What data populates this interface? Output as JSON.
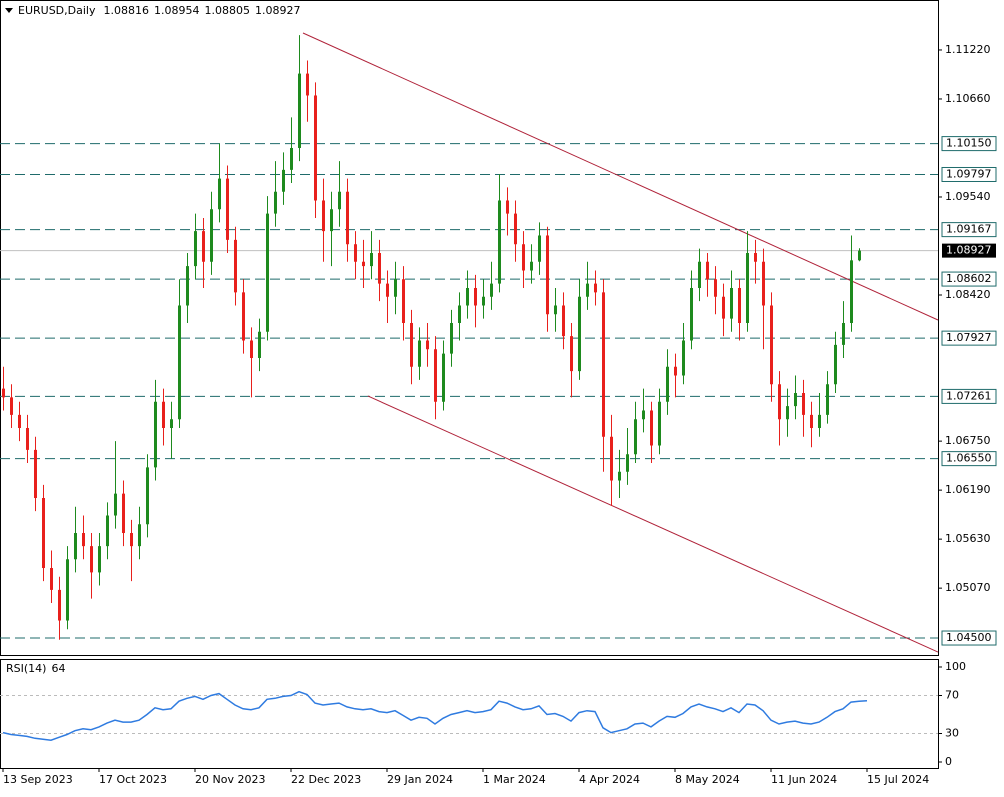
{
  "chart_data": {
    "type": "candlestick",
    "symbol": "EURUSD,Daily",
    "bull_color": "#1e8a1e",
    "bear_color": "#e8201c",
    "xlim": [
      -0.375,
      116.875
    ],
    "ylim": [
      1.04306,
      1.11791
    ],
    "xticks": [
      {
        "value": 0,
        "label": "13 Sep 2023"
      },
      {
        "value": 12,
        "label": "17 Oct 2023"
      },
      {
        "value": 24,
        "label": "20 Nov 2023"
      },
      {
        "value": 36,
        "label": "22 Dec 2023"
      },
      {
        "value": 48,
        "label": "29 Jan 2024"
      },
      {
        "value": 60,
        "label": "1 Mar 2024"
      },
      {
        "value": 72,
        "label": "4 Apr 2024"
      },
      {
        "value": 84,
        "label": "8 May 2024"
      },
      {
        "value": 96,
        "label": "11 Jun 2024"
      },
      {
        "value": 108,
        "label": "15 Jul 2024"
      }
    ],
    "yticks": [
      {
        "value": 1.1122,
        "label": "1.11220"
      },
      {
        "value": 1.1066,
        "label": "1.10660"
      },
      {
        "value": 1.0954,
        "label": "1.09540"
      },
      {
        "value": 1.0842,
        "label": "1.08420"
      },
      {
        "value": 1.0675,
        "label": "1.06750"
      },
      {
        "value": 1.0619,
        "label": "1.06190"
      },
      {
        "value": 1.0563,
        "label": "1.05630"
      },
      {
        "value": 1.0507,
        "label": "1.05070"
      }
    ],
    "levels_color": "#1f6b6b",
    "levels": [
      {
        "value": 1.1015,
        "label": "1.10150"
      },
      1.09797,
      1.09167,
      1.08602,
      1.07927,
      1.07261,
      {
        "value": 1.0655,
        "label": "1.06550"
      },
      {
        "value": 1.045,
        "label": "1.04500"
      }
    ],
    "trendline_color": "#b0233a",
    "trendlines": [
      {
        "x": [
          37.5,
          116.875
        ],
        "y": [
          1.11414,
          1.08134
        ]
      },
      {
        "x": [
          45.6,
          116.875
        ],
        "y": [
          1.07266,
          1.0434
        ]
      }
    ],
    "open": [
      1.0735,
      1.0725,
      1.0705,
      1.069,
      1.0665,
      1.061,
      1.053,
      1.0505,
      1.047,
      1.054,
      1.057,
      1.0555,
      1.0525,
      1.0555,
      1.059,
      1.0615,
      1.057,
      1.0555,
      1.058,
      1.0645,
      1.072,
      1.069,
      1.07,
      1.083,
      1.0875,
      1.0915,
      1.088,
      1.094,
      1.0975,
      1.0905,
      1.0845,
      1.079,
      1.077,
      1.08,
      1.0935,
      1.096,
      1.0985,
      1.101,
      1.1095,
      1.107,
      1.095,
      1.0915,
      1.094,
      1.096,
      1.09,
      1.088,
      1.0875,
      1.089,
      1.0855,
      1.084,
      1.086,
      1.081,
      1.076,
      1.079,
      1.078,
      1.072,
      1.0775,
      1.081,
      1.083,
      1.085,
      1.083,
      1.084,
      1.0855,
      1.095,
      1.0935,
      1.09,
      1.087,
      1.088,
      1.091,
      1.082,
      1.083,
      1.0795,
      1.0755,
      1.084,
      1.0855,
      1.0845,
      1.068,
      1.063,
      1.064,
      1.066,
      1.07,
      1.071,
      1.067,
      1.072,
      1.076,
      1.075,
      1.079,
      1.085,
      1.088,
      1.086,
      1.084,
      1.0815,
      1.085,
      1.081,
      1.089,
      1.088,
      1.083,
      1.074,
      1.07,
      1.0715,
      1.073,
      1.0705,
      1.069,
      1.0705,
      1.074,
      1.0785,
      1.081,
      1.08816
    ],
    "high": [
      1.076,
      1.074,
      1.072,
      1.0705,
      1.068,
      1.0625,
      1.055,
      1.052,
      1.0555,
      1.06,
      1.059,
      1.057,
      1.057,
      1.0605,
      1.0675,
      1.063,
      1.0585,
      1.06,
      1.066,
      1.0745,
      1.0735,
      1.072,
      1.086,
      1.089,
      1.0935,
      1.093,
      1.096,
      1.1015,
      1.099,
      1.092,
      1.086,
      1.0805,
      1.0815,
      1.0955,
      1.0995,
      1.1005,
      1.1045,
      1.1139,
      1.111,
      1.1085,
      1.0975,
      1.096,
      1.0995,
      1.0975,
      1.0915,
      1.0905,
      1.0915,
      1.0905,
      1.087,
      1.088,
      1.0875,
      1.0825,
      1.0805,
      1.081,
      1.0795,
      1.079,
      1.0825,
      1.0845,
      1.087,
      1.0865,
      1.086,
      1.088,
      1.098,
      1.0965,
      1.095,
      1.0915,
      1.09,
      1.0925,
      1.092,
      1.085,
      1.0845,
      1.081,
      1.086,
      1.088,
      1.087,
      1.086,
      1.0705,
      1.0665,
      1.069,
      1.072,
      1.0735,
      1.072,
      1.0735,
      1.078,
      1.0775,
      1.081,
      1.087,
      1.0895,
      1.089,
      1.0875,
      1.0855,
      1.087,
      1.086,
      1.0915,
      1.0905,
      1.0895,
      1.0845,
      1.0755,
      1.0735,
      1.075,
      1.0745,
      1.072,
      1.073,
      1.0755,
      1.08,
      1.0835,
      1.091,
      1.08954
    ],
    "low": [
      1.071,
      1.069,
      1.0675,
      1.065,
      1.0595,
      1.0515,
      1.049,
      1.0448,
      1.046,
      1.0525,
      1.054,
      1.0495,
      1.051,
      1.054,
      1.0575,
      1.0555,
      1.0515,
      1.054,
      1.0565,
      1.063,
      1.067,
      1.0655,
      1.069,
      1.081,
      1.086,
      1.085,
      1.0865,
      1.0925,
      1.089,
      1.083,
      1.0775,
      1.0725,
      1.0755,
      1.079,
      1.092,
      1.0945,
      1.097,
      1.0995,
      1.104,
      1.093,
      1.088,
      1.0875,
      1.092,
      1.088,
      1.086,
      1.085,
      1.086,
      1.0835,
      1.081,
      1.082,
      1.079,
      1.074,
      1.0745,
      1.076,
      1.07,
      1.071,
      1.076,
      1.079,
      1.0815,
      1.0805,
      1.0815,
      1.0825,
      1.0845,
      1.091,
      1.088,
      1.085,
      1.0855,
      1.0865,
      1.08,
      1.08,
      1.078,
      1.0725,
      1.0745,
      1.0825,
      1.083,
      1.064,
      1.0601,
      1.061,
      1.0625,
      1.065,
      1.0685,
      1.065,
      1.066,
      1.0705,
      1.0725,
      1.074,
      1.078,
      1.0835,
      1.084,
      1.082,
      1.0795,
      1.08,
      1.079,
      1.08,
      1.0855,
      1.078,
      1.072,
      1.067,
      1.068,
      1.07,
      1.068,
      1.0668,
      1.068,
      1.0695,
      1.073,
      1.077,
      1.08,
      1.08805
    ],
    "close": [
      1.0725,
      1.0705,
      1.069,
      1.0665,
      1.061,
      1.053,
      1.0505,
      1.047,
      1.054,
      1.057,
      1.0555,
      1.0525,
      1.0555,
      1.059,
      1.0615,
      1.057,
      1.0555,
      1.058,
      1.0645,
      1.072,
      1.069,
      1.07,
      1.083,
      1.0875,
      1.0915,
      1.088,
      1.094,
      1.0975,
      1.0905,
      1.0845,
      1.079,
      1.077,
      1.08,
      1.0935,
      1.096,
      1.0985,
      1.101,
      1.1095,
      1.107,
      1.095,
      1.0915,
      1.094,
      1.096,
      1.09,
      1.088,
      1.0875,
      1.089,
      1.0855,
      1.084,
      1.086,
      1.081,
      1.076,
      1.079,
      1.078,
      1.072,
      1.0775,
      1.081,
      1.083,
      1.085,
      1.083,
      1.084,
      1.0855,
      1.095,
      1.0935,
      1.09,
      1.087,
      1.088,
      1.091,
      1.082,
      1.083,
      1.0795,
      1.0755,
      1.084,
      1.0855,
      1.0845,
      1.068,
      1.063,
      1.064,
      1.066,
      1.07,
      1.071,
      1.067,
      1.072,
      1.076,
      1.075,
      1.079,
      1.085,
      1.088,
      1.086,
      1.084,
      1.0815,
      1.085,
      1.081,
      1.089,
      1.088,
      1.083,
      1.074,
      1.07,
      1.0715,
      1.073,
      1.0705,
      1.069,
      1.0705,
      1.074,
      1.0785,
      1.081,
      1.08816,
      1.08927
    ],
    "rsi": {
      "name": "RSI(14)",
      "color": "#2f7be0",
      "ylim": [
        -6.3,
        108.4
      ],
      "yticks": [
        0,
        30,
        70,
        100
      ],
      "levels": [
        30,
        70
      ],
      "values": [
        31,
        29,
        28,
        27,
        25,
        24,
        23,
        26,
        29,
        33,
        35,
        34,
        37,
        41,
        44,
        42,
        42,
        44,
        50,
        57,
        55,
        56,
        64,
        67,
        69,
        66,
        70,
        72,
        66,
        60,
        56,
        55,
        57,
        66,
        67,
        69,
        70,
        74,
        71,
        62,
        60,
        61,
        62,
        58,
        56,
        55,
        56,
        53,
        52,
        54,
        49,
        44,
        47,
        46,
        40,
        46,
        50,
        52,
        54,
        52,
        53,
        55,
        64,
        62,
        58,
        55,
        56,
        59,
        50,
        51,
        48,
        43,
        52,
        54,
        53,
        36,
        31,
        33,
        35,
        40,
        41,
        37,
        43,
        48,
        47,
        51,
        58,
        61,
        58,
        56,
        53,
        57,
        52,
        61,
        60,
        54,
        44,
        40,
        42,
        43,
        41,
        40,
        42,
        47,
        53,
        56,
        63,
        64,
        64.3976
      ]
    }
  }
}
